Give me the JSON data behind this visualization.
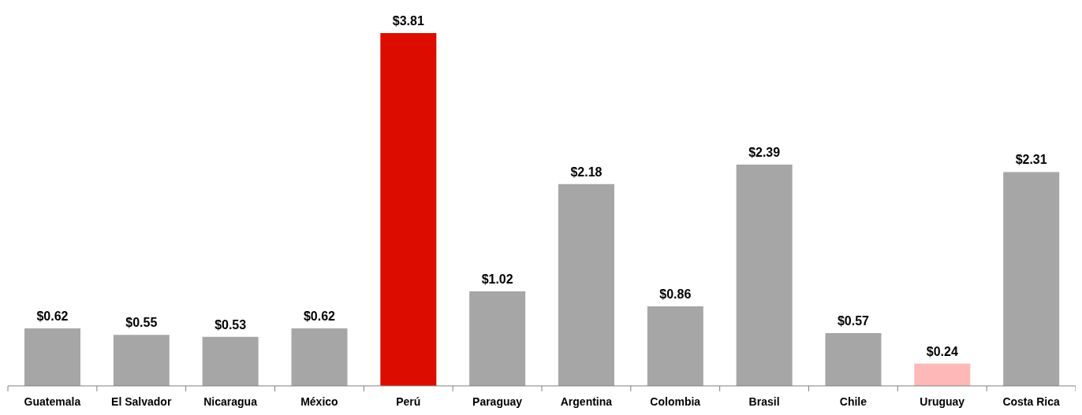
{
  "chart_data": {
    "type": "bar",
    "categories": [
      "Guatemala",
      "El Salvador",
      "Nicaragua",
      "México",
      "Perú",
      "Paraguay",
      "Argentina",
      "Colombia",
      "Brasil",
      "Chile",
      "Uruguay",
      "Costa Rica"
    ],
    "values": [
      0.62,
      0.55,
      0.53,
      0.62,
      3.81,
      1.02,
      2.18,
      0.86,
      2.39,
      0.57,
      0.24,
      2.31
    ],
    "colors": [
      "#a6a6a6",
      "#a6a6a6",
      "#a6a6a6",
      "#a6a6a6",
      "#dd0c00",
      "#a6a6a6",
      "#a6a6a6",
      "#a6a6a6",
      "#a6a6a6",
      "#a6a6a6",
      "#ffb8b8",
      "#a6a6a6"
    ],
    "value_labels": [
      "$0.62",
      "$0.55",
      "$0.53",
      "$0.62",
      "$3.81",
      "$1.02",
      "$2.18",
      "$0.86",
      "$2.39",
      "$0.57",
      "$0.24",
      "$2.31"
    ],
    "grid": false,
    "legend": false
  }
}
